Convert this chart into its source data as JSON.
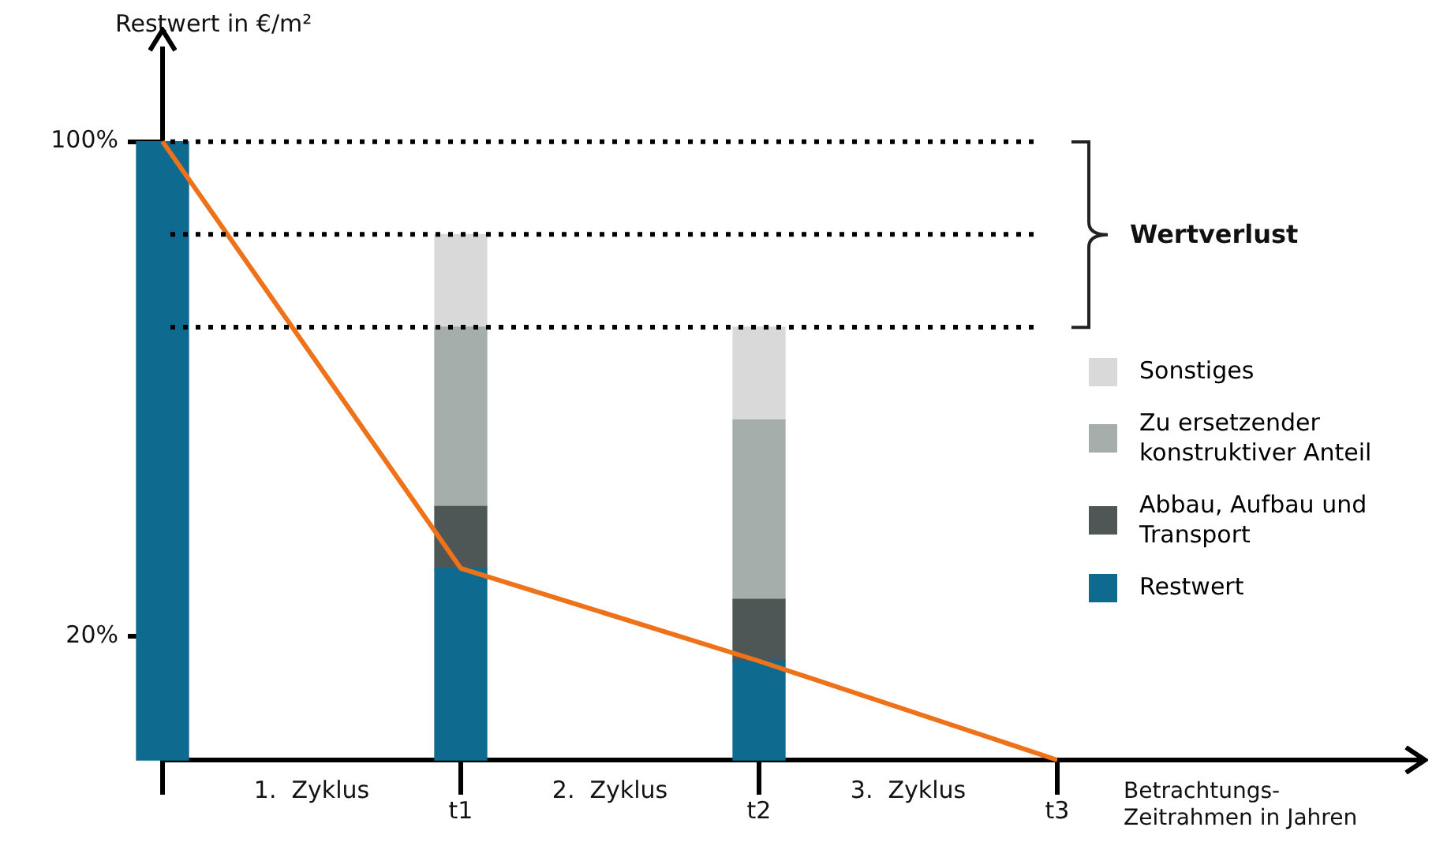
{
  "chart_data": {
    "type": "bar",
    "stacked": true,
    "ylabel": "Restwert in €/m²",
    "xlabel": "Betrachtungs-\nZeitrahmen in Jahren",
    "categories": [
      null,
      "t1",
      "t2",
      "t3"
    ],
    "ylim": [
      0,
      115
    ],
    "yticks": [
      {
        "value": 20,
        "label": "20%"
      },
      {
        "value": 100,
        "label": "100%"
      }
    ],
    "series": [
      {
        "name": "Restwert",
        "color": "#0e6a8e",
        "values": [
          100,
          31,
          16,
          null
        ]
      },
      {
        "name": "Abbau, Aufbau und Transport",
        "color": "#4e5656",
        "values": [
          null,
          10,
          10,
          null
        ]
      },
      {
        "name": "Zu ersetzender konstruktiver Anteil",
        "color": "#a5aeab",
        "values": [
          null,
          29,
          29,
          null
        ]
      },
      {
        "name": "Sonstiges",
        "color": "#d9d9d9",
        "values": [
          null,
          15,
          15,
          null
        ]
      },
      {
        "type": "line",
        "color": "#ee7219",
        "values": [
          100,
          31,
          16,
          0
        ]
      }
    ],
    "ref_lines": [
      {
        "axis": "y",
        "value": 100,
        "line_style": "dotted",
        "color": "#000000"
      },
      {
        "axis": "y",
        "value": 85,
        "line_style": "dotted",
        "color": "#000000"
      },
      {
        "axis": "y",
        "value": 70,
        "line_style": "dotted",
        "color": "#000000"
      }
    ],
    "annotations": [
      "1.  Zyklus",
      "2.  Zyklus",
      "3.  Zyklus",
      "Wertverlust"
    ],
    "legend": "right",
    "grid": false
  }
}
